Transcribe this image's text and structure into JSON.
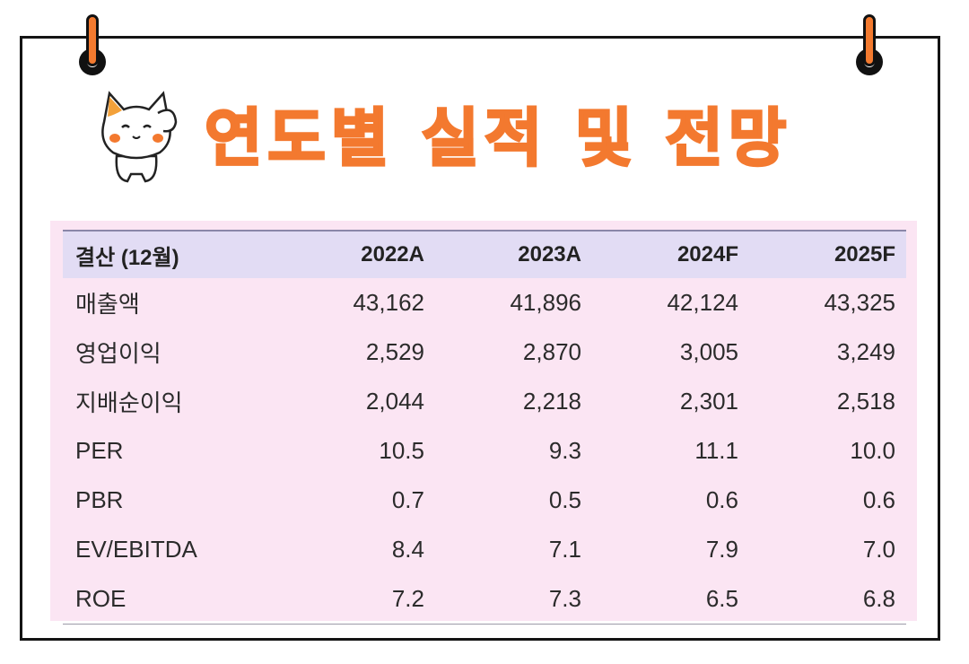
{
  "title": "연도별 실적 및 전망",
  "colors": {
    "accent": "#f3792f",
    "table_bg": "#fbe5f3",
    "header_bg": "#e2dcf4",
    "border": "#141414"
  },
  "icons": [
    "pin-icon",
    "cat-mascot-icon"
  ],
  "table": {
    "columns": [
      "결산 (12월)",
      "2022A",
      "2023A",
      "2024F",
      "2025F"
    ],
    "rows": [
      {
        "label": "매출액",
        "values": [
          "43,162",
          "41,896",
          "42,124",
          "43,325"
        ]
      },
      {
        "label": "영업이익",
        "values": [
          "2,529",
          "2,870",
          "3,005",
          "3,249"
        ]
      },
      {
        "label": "지배순이익",
        "values": [
          "2,044",
          "2,218",
          "2,301",
          "2,518"
        ]
      },
      {
        "label": "PER",
        "values": [
          "10.5",
          "9.3",
          "11.1",
          "10.0"
        ]
      },
      {
        "label": "PBR",
        "values": [
          "0.7",
          "0.5",
          "0.6",
          "0.6"
        ]
      },
      {
        "label": "EV/EBITDA",
        "values": [
          "8.4",
          "7.1",
          "7.9",
          "7.0"
        ]
      },
      {
        "label": "ROE",
        "values": [
          "7.2",
          "7.3",
          "6.5",
          "6.8"
        ]
      }
    ]
  }
}
